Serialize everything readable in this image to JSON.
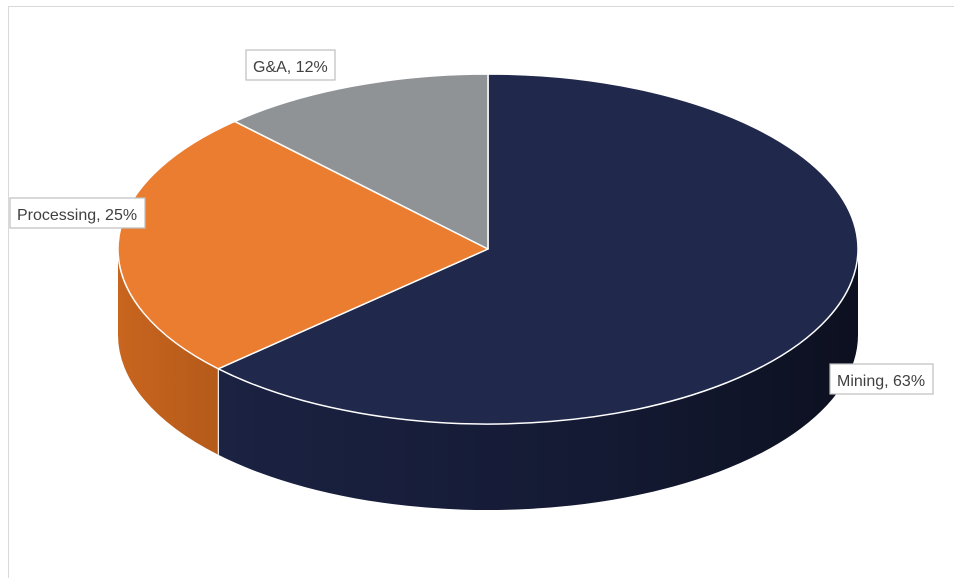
{
  "chart_data": {
    "type": "pie",
    "style": "3d",
    "categories": [
      "Mining",
      "Processing",
      "G&A"
    ],
    "values": [
      63,
      25,
      12
    ],
    "unit": "%",
    "data_labels": [
      "Mining, 63%",
      "Processing, 25%",
      "G&A, 12%"
    ],
    "colors": {
      "Mining": "#20284B",
      "Processing": "#EB7D30",
      "G&A": "#909396"
    },
    "legend": "none",
    "title": ""
  }
}
